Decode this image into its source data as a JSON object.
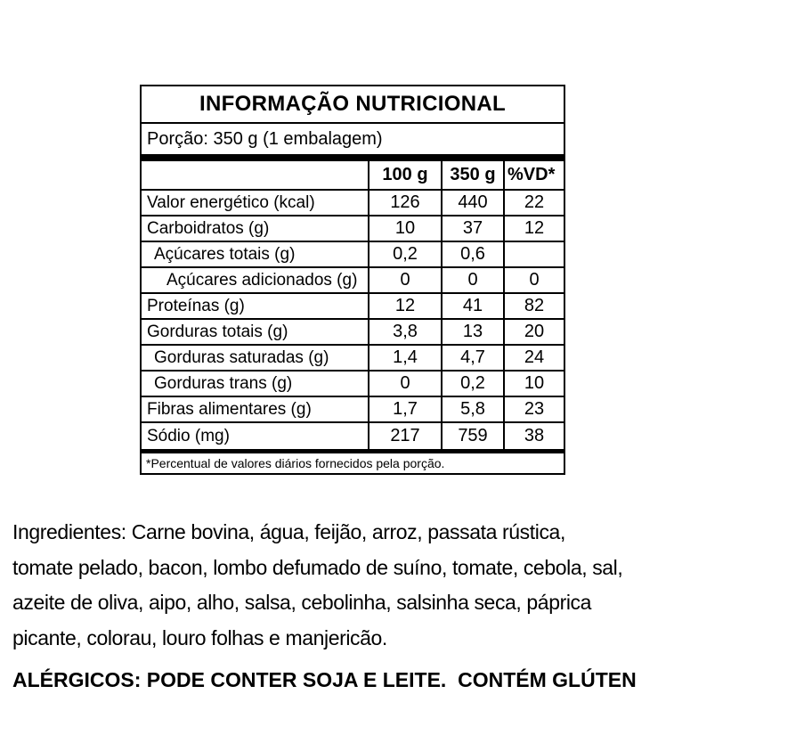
{
  "nutrition_table": {
    "title": "INFORMAÇÃO NUTRICIONAL",
    "portion": "Porção: 350 g (1 embalagem)",
    "columns": [
      "100 g",
      "350 g",
      "%VD*"
    ],
    "rows": [
      {
        "label": "Valor energético (kcal)",
        "indent": 0,
        "v100": "126",
        "v350": "440",
        "vd": "22"
      },
      {
        "label": "Carboidratos (g)",
        "indent": 0,
        "v100": "10",
        "v350": "37",
        "vd": "12"
      },
      {
        "label": "Açúcares totais (g)",
        "indent": 1,
        "v100": "0,2",
        "v350": "0,6",
        "vd": ""
      },
      {
        "label": "Açúcares adicionados (g)",
        "indent": 2,
        "v100": "0",
        "v350": "0",
        "vd": "0"
      },
      {
        "label": "Proteínas (g)",
        "indent": 0,
        "v100": "12",
        "v350": "41",
        "vd": "82"
      },
      {
        "label": "Gorduras totais (g)",
        "indent": 0,
        "v100": "3,8",
        "v350": "13",
        "vd": "20"
      },
      {
        "label": "Gorduras saturadas (g)",
        "indent": 1,
        "v100": "1,4",
        "v350": "4,7",
        "vd": "24"
      },
      {
        "label": "Gorduras trans (g)",
        "indent": 1,
        "v100": "0",
        "v350": "0,2",
        "vd": "10"
      },
      {
        "label": "Fibras alimentares (g)",
        "indent": 0,
        "v100": "1,7",
        "v350": "5,8",
        "vd": "23"
      },
      {
        "label": "Sódio (mg)",
        "indent": 0,
        "v100": "217",
        "v350": "759",
        "vd": "38"
      }
    ],
    "footnote": "*Percentual de valores diários fornecidos pela porção."
  },
  "ingredients": {
    "lines": [
      "Ingredientes: Carne bovina, água, feijão, arroz, passata rústica,",
      "tomate pelado, bacon, lombo defumado de suíno, tomate, cebola, sal,",
      "azeite de oliva, aipo, alho, salsa, cebolinha, salsinha seca, páprica",
      "picante, colorau, louro folhas e manjericão."
    ]
  },
  "allergens": "ALÉRGICOS: PODE CONTER SOJA E LEITE.  CONTÉM GLÚTEN",
  "colors": {
    "background": "#ffffff",
    "text": "#000000",
    "border": "#000000"
  }
}
